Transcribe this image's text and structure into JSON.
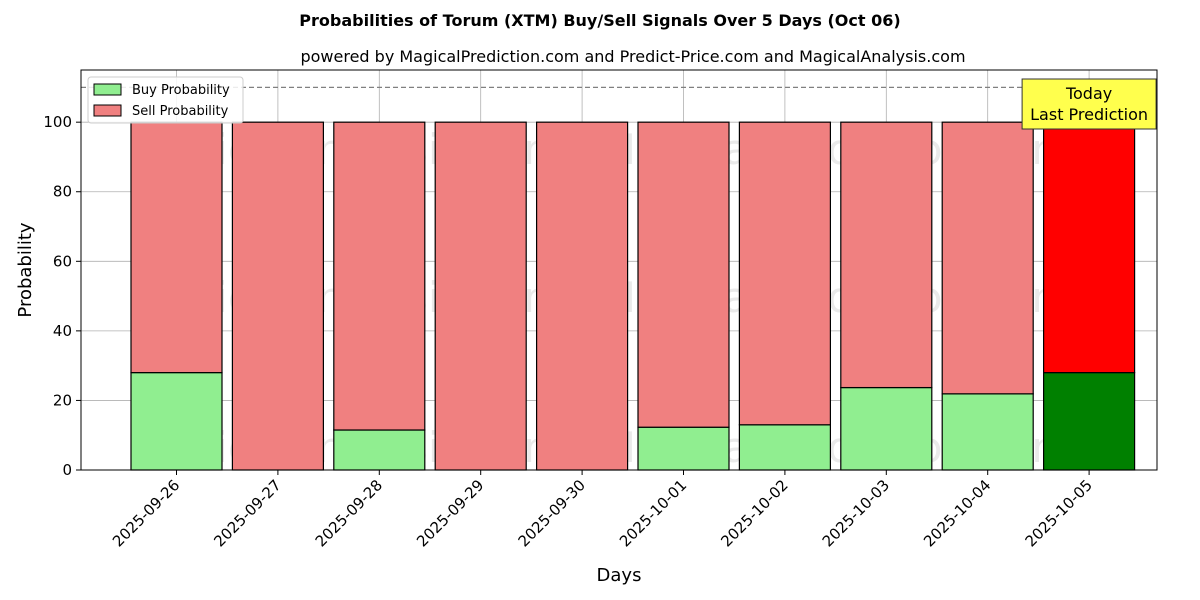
{
  "chart_data": {
    "type": "bar",
    "stacked": true,
    "title": "Probabilities of Torum (XTM) Buy/Sell Signals Over 5 Days (Oct 06)",
    "subtitle": "powered by MagicalPrediction.com and Predict-Price.com and MagicalAnalysis.com",
    "xlabel": "Days",
    "ylabel": "Probability",
    "ylim": [
      0,
      115
    ],
    "yticks": [
      0,
      20,
      40,
      60,
      80,
      100
    ],
    "grid": true,
    "legend_position": "top-left",
    "reference_line": {
      "y": 110,
      "style": "dashed",
      "color": "#808080"
    },
    "categories": [
      "2025-09-26",
      "2025-09-27",
      "2025-09-28",
      "2025-09-29",
      "2025-09-30",
      "2025-10-01",
      "2025-10-02",
      "2025-10-03",
      "2025-10-04",
      "2025-10-05"
    ],
    "series": [
      {
        "name": "Buy Probability",
        "color": "#90ee90",
        "highlight_color": "#008000",
        "values": [
          28,
          0,
          11.5,
          0,
          0,
          12.3,
          13,
          23.7,
          21.9,
          28
        ]
      },
      {
        "name": "Sell Probability",
        "color": "#f08080",
        "highlight_color": "#ff0000",
        "values": [
          72,
          100,
          88.5,
          100,
          100,
          87.7,
          87,
          76.3,
          78.1,
          72
        ]
      }
    ],
    "highlight_index": 9,
    "annotation": {
      "lines": [
        "Today",
        "Last Prediction"
      ],
      "background": "#ffff4d"
    },
    "watermarks": [
      "MagicalAnalysis.com",
      "MagicalPrediction.com"
    ]
  }
}
